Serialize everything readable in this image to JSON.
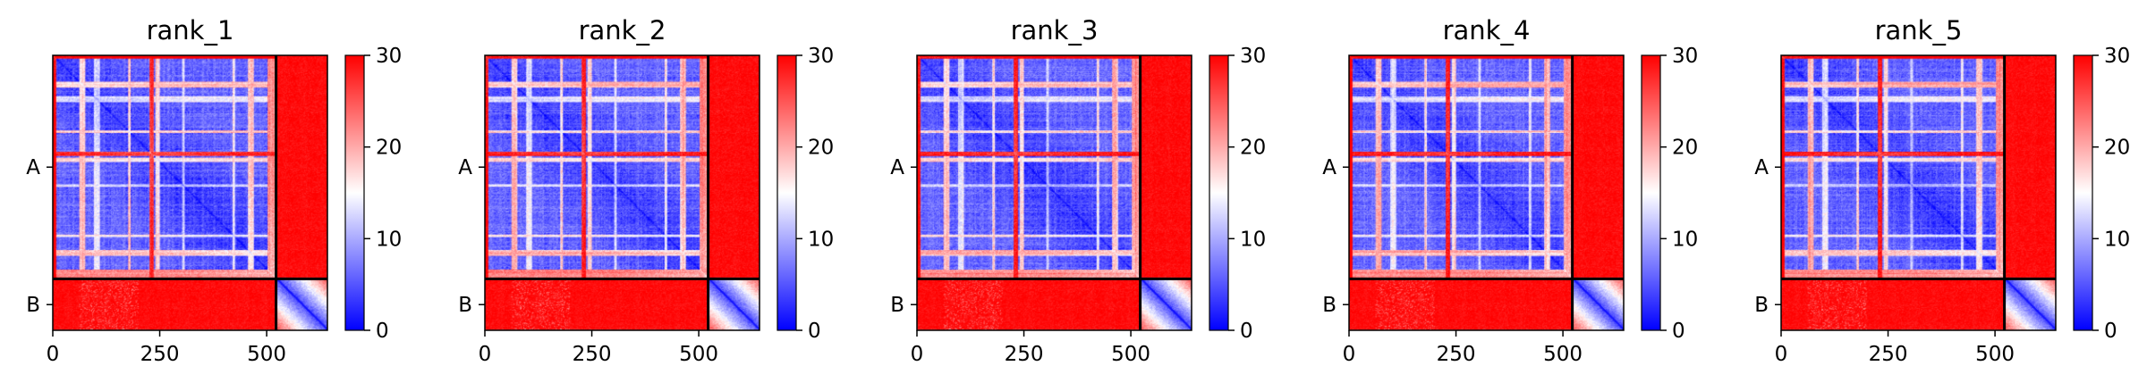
{
  "chart_data": {
    "type": "heatmap",
    "colormap": {
      "name": "bwr",
      "low": "#0000ff",
      "mid": "#ffffff",
      "high": "#ff0000"
    },
    "colorbar": {
      "range": [
        0,
        30
      ],
      "ticks": [
        0,
        10,
        20,
        30
      ]
    },
    "chains": [
      {
        "label": "A",
        "start": 0,
        "end": 522
      },
      {
        "label": "B",
        "start": 522,
        "end": 642
      }
    ],
    "x_ticks": [
      0,
      250,
      500
    ],
    "panels": [
      {
        "title": "rank_1"
      },
      {
        "title": "rank_2"
      },
      {
        "title": "rank_3"
      },
      {
        "title": "rank_4"
      },
      {
        "title": "rank_5"
      }
    ]
  }
}
